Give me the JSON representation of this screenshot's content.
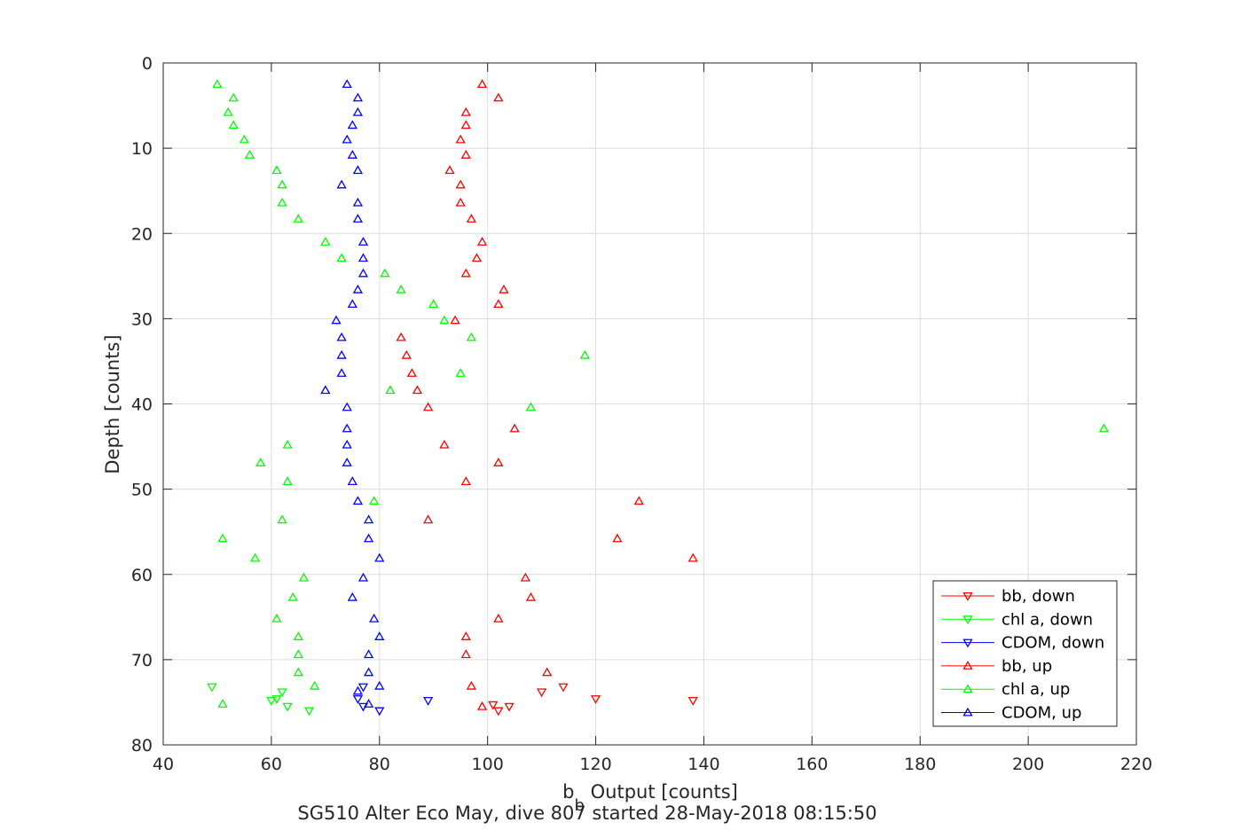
{
  "chart_data": {
    "type": "scatter",
    "xlabel": "b",
    "xlabel_subscript": "b",
    "xlabel_suffix": " Output [counts]",
    "ylabel": "Depth [counts]",
    "caption": "SG510 Alter Eco May, dive 807 started 28-May-2018 08:15:50",
    "xlim": [
      40,
      220
    ],
    "ylim": [
      0,
      80
    ],
    "y_reversed": true,
    "grid": true,
    "legend_position": "bottom-right",
    "x_ticks": [
      40,
      60,
      80,
      100,
      120,
      140,
      160,
      180,
      200,
      220
    ],
    "y_ticks": [
      0,
      10,
      20,
      30,
      40,
      50,
      60,
      70,
      80
    ],
    "series": [
      {
        "name": "bb, down",
        "color": "#ff0000",
        "marker": "triangle-down",
        "points": [
          [
            101,
            75.3
          ],
          [
            102,
            76
          ],
          [
            104,
            75.5
          ],
          [
            110,
            73.8
          ],
          [
            114,
            73.2
          ],
          [
            120,
            74.6
          ],
          [
            138,
            74.8
          ]
        ]
      },
      {
        "name": "chl a, down",
        "color": "#00ff00",
        "marker": "triangle-down",
        "points": [
          [
            49,
            73.2
          ],
          [
            60,
            74.8
          ],
          [
            61,
            74.6
          ],
          [
            62,
            73.8
          ],
          [
            63,
            75.5
          ],
          [
            67,
            76
          ]
        ]
      },
      {
        "name": "CDOM, down",
        "color": "#0000ff",
        "marker": "triangle-down",
        "points": [
          [
            76,
            74.6
          ],
          [
            77,
            73.2
          ],
          [
            77,
            75.5
          ],
          [
            80,
            76
          ],
          [
            89,
            74.8
          ]
        ]
      },
      {
        "name": "bb, up",
        "color": "#ff0000",
        "marker": "triangle-up",
        "points": [
          [
            99,
            2.5
          ],
          [
            102,
            4.1
          ],
          [
            96,
            5.8
          ],
          [
            96,
            7.3
          ],
          [
            95,
            9
          ],
          [
            96,
            10.8
          ],
          [
            93,
            12.6
          ],
          [
            95,
            14.3
          ],
          [
            95,
            16.4
          ],
          [
            97,
            18.3
          ],
          [
            99,
            21
          ],
          [
            98,
            22.9
          ],
          [
            96,
            24.7
          ],
          [
            103,
            26.6
          ],
          [
            102,
            28.3
          ],
          [
            94,
            30.2
          ],
          [
            84,
            32.2
          ],
          [
            85,
            34.3
          ],
          [
            86,
            36.4
          ],
          [
            87,
            38.4
          ],
          [
            89,
            40.4
          ],
          [
            105,
            42.9
          ],
          [
            92,
            44.8
          ],
          [
            102,
            46.9
          ],
          [
            96,
            49.1
          ],
          [
            128,
            51.4
          ],
          [
            89,
            53.6
          ],
          [
            124,
            55.8
          ],
          [
            138,
            58.1
          ],
          [
            107,
            60.4
          ],
          [
            108,
            62.7
          ],
          [
            102,
            65.2
          ],
          [
            96,
            67.3
          ],
          [
            96,
            69.4
          ],
          [
            111,
            71.5
          ],
          [
            97,
            73.1
          ],
          [
            99,
            75.5
          ]
        ]
      },
      {
        "name": "chl a, up",
        "color": "#00ff00",
        "marker": "triangle-up",
        "points": [
          [
            50,
            2.5
          ],
          [
            53,
            4.1
          ],
          [
            52,
            5.8
          ],
          [
            53,
            7.3
          ],
          [
            55,
            9
          ],
          [
            56,
            10.8
          ],
          [
            61,
            12.6
          ],
          [
            62,
            14.3
          ],
          [
            62,
            16.4
          ],
          [
            65,
            18.3
          ],
          [
            70,
            21
          ],
          [
            73,
            22.9
          ],
          [
            81,
            24.7
          ],
          [
            84,
            26.6
          ],
          [
            90,
            28.3
          ],
          [
            92,
            30.2
          ],
          [
            97,
            32.2
          ],
          [
            118,
            34.3
          ],
          [
            95,
            36.4
          ],
          [
            82,
            38.4
          ],
          [
            108,
            40.4
          ],
          [
            214,
            42.9
          ],
          [
            63,
            44.8
          ],
          [
            58,
            46.9
          ],
          [
            63,
            49.1
          ],
          [
            79,
            51.4
          ],
          [
            62,
            53.6
          ],
          [
            51,
            55.8
          ],
          [
            57,
            58.1
          ],
          [
            66,
            60.4
          ],
          [
            64,
            62.7
          ],
          [
            61,
            65.2
          ],
          [
            65,
            67.3
          ],
          [
            65,
            69.4
          ],
          [
            65,
            71.5
          ],
          [
            68,
            73.1
          ],
          [
            51,
            75.2
          ]
        ]
      },
      {
        "name": "CDOM, up",
        "color": "#0000ff",
        "marker": "triangle-up",
        "points": [
          [
            74,
            2.5
          ],
          [
            76,
            4.1
          ],
          [
            76,
            5.8
          ],
          [
            75,
            7.3
          ],
          [
            74,
            9
          ],
          [
            75,
            10.8
          ],
          [
            76,
            12.6
          ],
          [
            73,
            14.3
          ],
          [
            76,
            16.4
          ],
          [
            76,
            18.3
          ],
          [
            77,
            21
          ],
          [
            77,
            22.9
          ],
          [
            77,
            24.7
          ],
          [
            76,
            26.6
          ],
          [
            75,
            28.3
          ],
          [
            72,
            30.2
          ],
          [
            73,
            32.2
          ],
          [
            73,
            34.3
          ],
          [
            73,
            36.4
          ],
          [
            70,
            38.4
          ],
          [
            74,
            40.4
          ],
          [
            74,
            42.9
          ],
          [
            74,
            44.8
          ],
          [
            74,
            46.9
          ],
          [
            75,
            49.1
          ],
          [
            76,
            51.4
          ],
          [
            78,
            53.6
          ],
          [
            78,
            55.8
          ],
          [
            80,
            58.1
          ],
          [
            77,
            60.4
          ],
          [
            75,
            62.7
          ],
          [
            79,
            65.2
          ],
          [
            80,
            67.3
          ],
          [
            78,
            69.4
          ],
          [
            78,
            71.5
          ],
          [
            80,
            73.1
          ],
          [
            76,
            73.7
          ],
          [
            78,
            75.2
          ]
        ]
      }
    ]
  }
}
